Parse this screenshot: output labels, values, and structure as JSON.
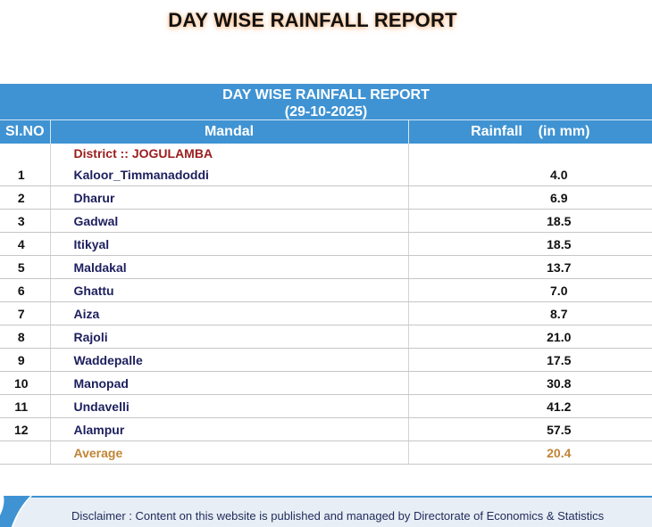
{
  "page_title": "DAY WISE RAINFALL REPORT",
  "report": {
    "title": "DAY WISE RAINFALL REPORT",
    "date": "(29-10-2025)",
    "columns": {
      "slno": "Sl.NO",
      "mandal": "Mandal",
      "rainfall": "Rainfall    (in mm)"
    },
    "district_label": "District :: JOGULAMBA",
    "rows": [
      {
        "sl": "1",
        "mandal": "Kaloor_Timmanadoddi",
        "rainfall": "4.0"
      },
      {
        "sl": "2",
        "mandal": "Dharur",
        "rainfall": "6.9"
      },
      {
        "sl": "3",
        "mandal": "Gadwal",
        "rainfall": "18.5"
      },
      {
        "sl": "4",
        "mandal": "Itikyal",
        "rainfall": "18.5"
      },
      {
        "sl": "5",
        "mandal": "Maldakal",
        "rainfall": "13.7"
      },
      {
        "sl": "6",
        "mandal": "Ghattu",
        "rainfall": "7.0"
      },
      {
        "sl": "7",
        "mandal": "Aiza",
        "rainfall": "8.7"
      },
      {
        "sl": "8",
        "mandal": "Rajoli",
        "rainfall": "21.0"
      },
      {
        "sl": "9",
        "mandal": "Waddepalle",
        "rainfall": "17.5"
      },
      {
        "sl": "10",
        "mandal": "Manopad",
        "rainfall": "30.8"
      },
      {
        "sl": "11",
        "mandal": "Undavelli",
        "rainfall": "41.2"
      },
      {
        "sl": "12",
        "mandal": "Alampur",
        "rainfall": "57.5"
      }
    ],
    "average_label": "Average",
    "average_value": "20.4"
  },
  "footer": {
    "disclaimer": "Disclaimer : Content on this website is published and managed by Directorate of Economics & Statistics",
    "logo_icon": "website-logo-icon"
  },
  "colors": {
    "header_blue": "#3f93d3",
    "district_red": "#9b1c1c",
    "average_orange": "#c08436",
    "mandal_navy": "#1d1f5e"
  }
}
